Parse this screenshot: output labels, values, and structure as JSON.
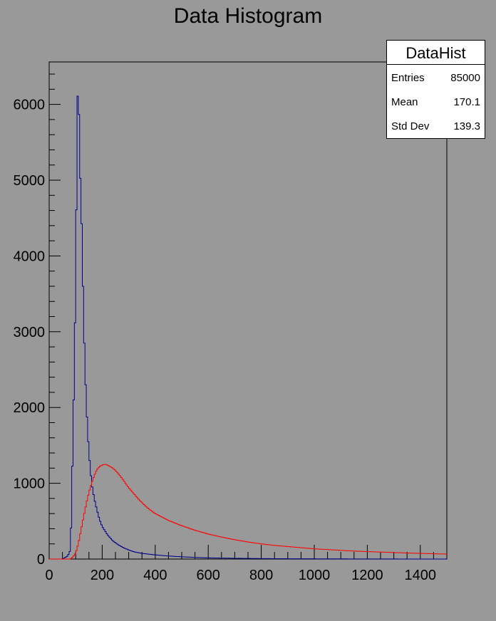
{
  "chart_data": {
    "type": "histogram",
    "title": "Data Histogram",
    "xlabel": "",
    "ylabel": "",
    "xlim": [
      0,
      1500
    ],
    "ylim": [
      0,
      6560
    ],
    "x_ticks": [
      0,
      200,
      400,
      600,
      800,
      1000,
      1200,
      1400
    ],
    "y_ticks": [
      0,
      1000,
      2000,
      3000,
      4000,
      5000,
      6000
    ],
    "grid": false,
    "series": [
      {
        "color": "#00008b",
        "points": [
          [
            0,
            0
          ],
          [
            50,
            0
          ],
          [
            60,
            20
          ],
          [
            70,
            40
          ],
          [
            80,
            120
          ],
          [
            85,
            700
          ],
          [
            90,
            1750
          ],
          [
            95,
            2450
          ],
          [
            98,
            3250
          ],
          [
            100,
            4150
          ],
          [
            103,
            4700
          ],
          [
            105,
            5400
          ],
          [
            108,
            6250
          ],
          [
            110,
            6200
          ],
          [
            113,
            5800
          ],
          [
            115,
            5250
          ],
          [
            120,
            4800
          ],
          [
            125,
            4050
          ],
          [
            130,
            3150
          ],
          [
            135,
            2550
          ],
          [
            140,
            2050
          ],
          [
            145,
            1700
          ],
          [
            150,
            1400
          ],
          [
            155,
            1200
          ],
          [
            160,
            1000
          ],
          [
            170,
            800
          ],
          [
            180,
            650
          ],
          [
            190,
            520
          ],
          [
            200,
            430
          ],
          [
            220,
            320
          ],
          [
            240,
            240
          ],
          [
            260,
            190
          ],
          [
            280,
            150
          ],
          [
            300,
            120
          ],
          [
            320,
            95
          ],
          [
            350,
            75
          ],
          [
            400,
            55
          ],
          [
            450,
            40
          ],
          [
            500,
            30
          ],
          [
            550,
            22
          ],
          [
            600,
            16
          ],
          [
            700,
            10
          ],
          [
            800,
            6
          ],
          [
            900,
            4
          ],
          [
            1000,
            3
          ],
          [
            1100,
            2
          ],
          [
            1200,
            1
          ],
          [
            1500,
            0
          ]
        ]
      },
      {
        "color": "#ff0000",
        "points": [
          [
            0,
            0
          ],
          [
            80,
            0
          ],
          [
            90,
            30
          ],
          [
            100,
            80
          ],
          [
            110,
            200
          ],
          [
            120,
            380
          ],
          [
            130,
            560
          ],
          [
            140,
            730
          ],
          [
            150,
            880
          ],
          [
            160,
            1000
          ],
          [
            170,
            1100
          ],
          [
            180,
            1180
          ],
          [
            190,
            1220
          ],
          [
            200,
            1240
          ],
          [
            210,
            1250
          ],
          [
            220,
            1240
          ],
          [
            230,
            1220
          ],
          [
            240,
            1200
          ],
          [
            250,
            1170
          ],
          [
            260,
            1130
          ],
          [
            270,
            1090
          ],
          [
            280,
            1040
          ],
          [
            290,
            990
          ],
          [
            300,
            940
          ],
          [
            320,
            860
          ],
          [
            340,
            780
          ],
          [
            360,
            710
          ],
          [
            380,
            650
          ],
          [
            400,
            600
          ],
          [
            450,
            510
          ],
          [
            500,
            440
          ],
          [
            550,
            380
          ],
          [
            600,
            330
          ],
          [
            650,
            290
          ],
          [
            700,
            255
          ],
          [
            750,
            225
          ],
          [
            800,
            200
          ],
          [
            850,
            180
          ],
          [
            900,
            165
          ],
          [
            950,
            150
          ],
          [
            1000,
            135
          ],
          [
            1050,
            125
          ],
          [
            1100,
            115
          ],
          [
            1150,
            105
          ],
          [
            1200,
            98
          ],
          [
            1250,
            92
          ],
          [
            1300,
            86
          ],
          [
            1350,
            80
          ],
          [
            1400,
            75
          ],
          [
            1450,
            70
          ],
          [
            1500,
            66
          ]
        ]
      }
    ]
  },
  "stats": {
    "name": "DataHist",
    "entries_label": "Entries",
    "entries_value": "85000",
    "mean_label": "Mean",
    "mean_value": "170.1",
    "stddev_label": "Std Dev",
    "stddev_value": "139.3"
  }
}
